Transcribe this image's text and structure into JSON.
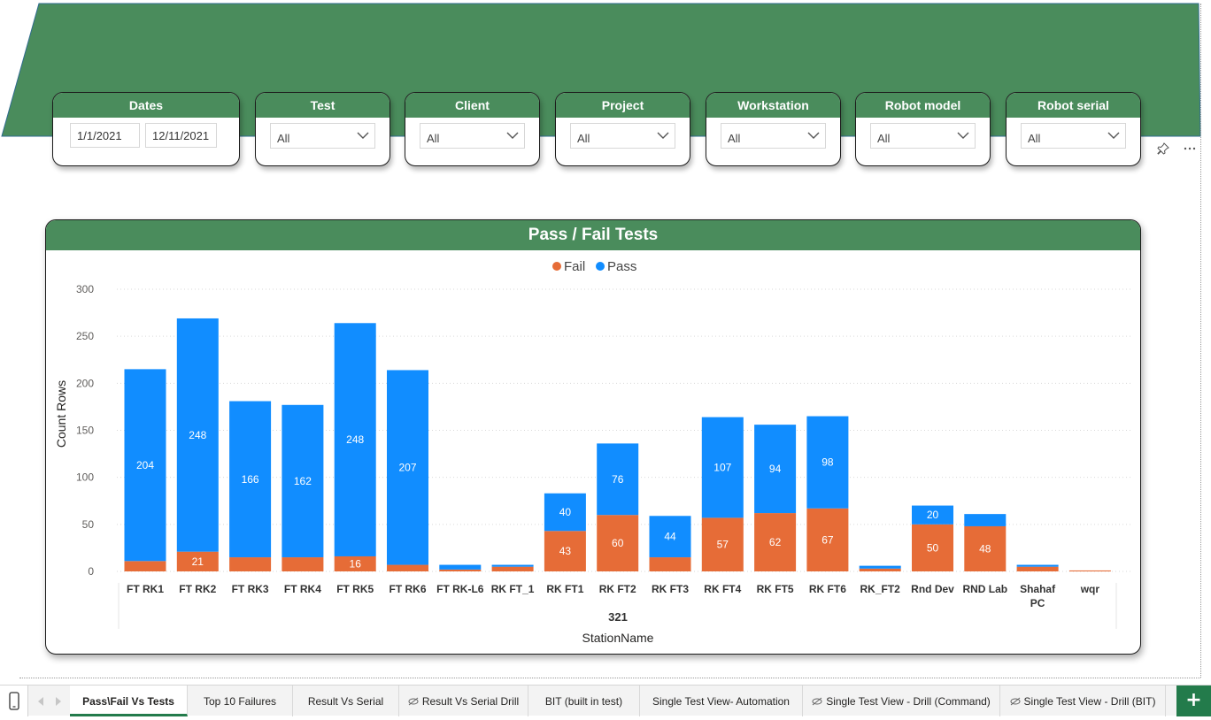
{
  "filters": {
    "dates": {
      "title": "Dates",
      "start": "1/1/2021",
      "end": "12/11/2021"
    },
    "test": {
      "title": "Test",
      "value": "All"
    },
    "client": {
      "title": "Client",
      "value": "All"
    },
    "project": {
      "title": "Project",
      "value": "All"
    },
    "workstation": {
      "title": "Workstation",
      "value": "All"
    },
    "robot_model": {
      "title": "Robot model",
      "value": "All"
    },
    "robot_serial": {
      "title": "Robot serial",
      "value": "All"
    }
  },
  "visual_header_icons": [
    "pin-icon",
    "more-options-icon"
  ],
  "colors": {
    "banner": "#4a8c5c",
    "fail": "#e66c37",
    "pass": "#118dff",
    "active_tab": "#237b4b"
  },
  "chart_data": {
    "type": "bar",
    "stacked": true,
    "title": "Pass / Fail Tests",
    "xlabel": "StationName",
    "ylabel": "Count Rows",
    "ylim": [
      0,
      300
    ],
    "yticks": [
      0,
      50,
      100,
      150,
      200,
      250,
      300
    ],
    "legend_position": "top-center",
    "grid": true,
    "x_group_label": "321",
    "categories": [
      "FT RK1",
      "FT RK2",
      "FT RK3",
      "FT RK4",
      "FT RK5",
      "FT RK6",
      "FT RK-L6",
      "RK FT_1",
      "RK FT1",
      "RK FT2",
      "RK FT3",
      "RK FT4",
      "RK FT5",
      "RK FT6",
      "RK_FT2",
      "Rnd Dev",
      "RND Lab",
      "Shahaf PC",
      "wqr"
    ],
    "series": [
      {
        "name": "Fail",
        "color": "#e66c37",
        "values": [
          11,
          21,
          15,
          15,
          16,
          7,
          2,
          5,
          43,
          60,
          15,
          57,
          62,
          67,
          3,
          50,
          48,
          5,
          1
        ],
        "labels": [
          "",
          "21",
          "",
          "",
          "16",
          "",
          "",
          "",
          "43",
          "60",
          "",
          "57",
          "62",
          "67",
          "",
          "50",
          "48",
          "",
          ""
        ]
      },
      {
        "name": "Pass",
        "color": "#118dff",
        "values": [
          204,
          248,
          166,
          162,
          248,
          207,
          5,
          2,
          40,
          76,
          44,
          107,
          94,
          98,
          3,
          20,
          13,
          2,
          0
        ],
        "labels": [
          "204",
          "248",
          "166",
          "162",
          "248",
          "207",
          "",
          "",
          "40",
          "76",
          "44",
          "107",
          "94",
          "98",
          "",
          "20",
          "",
          "",
          ""
        ]
      }
    ]
  },
  "tabs": [
    {
      "label": "Pass\\Fail Vs Tests",
      "active": true,
      "hidden": false
    },
    {
      "label": "Top 10 Failures",
      "active": false,
      "hidden": false
    },
    {
      "label": "Result Vs Serial",
      "active": false,
      "hidden": false
    },
    {
      "label": "Result Vs Serial Drill",
      "active": false,
      "hidden": true
    },
    {
      "label": "BIT (built in test)",
      "active": false,
      "hidden": false
    },
    {
      "label": "Single Test View- Automation",
      "active": false,
      "hidden": false
    },
    {
      "label": "Single Test View - Drill (Command)",
      "active": false,
      "hidden": true
    },
    {
      "label": "Single Test View - Drill (BIT)",
      "active": false,
      "hidden": true
    }
  ],
  "add_page_label": "+"
}
